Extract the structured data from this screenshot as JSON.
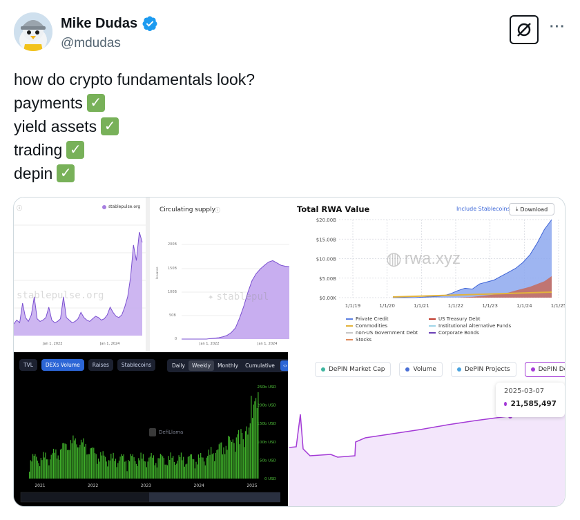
{
  "author": {
    "name": "Mike Dudas",
    "handle": "@mdudas",
    "avatar_icon": "penguin-avatar-icon",
    "verified_color": "#1d9bf0"
  },
  "header": {
    "grok_icon": "grok-icon",
    "more_label": "···"
  },
  "tweet": {
    "lines": [
      "how do crypto fundamentals look?",
      "payments",
      "yield assets",
      "trading",
      "depin"
    ],
    "check_glyph": "✓",
    "check_color": "#78b159"
  },
  "media": {
    "stablepulse": {
      "brand": "stablepulse.org",
      "watermark": "stablepulse.org",
      "x_ticks": [
        "Jan 1, 2022",
        "Jan 1, 2024"
      ],
      "series": [
        9,
        12,
        10,
        25,
        14,
        11,
        16,
        30,
        13,
        11,
        12,
        14,
        22,
        12,
        10,
        11,
        13,
        30,
        14,
        12,
        10,
        11,
        13,
        18,
        14,
        12,
        11,
        13,
        15,
        14,
        12,
        13,
        16,
        22,
        18,
        15,
        14,
        16,
        22,
        30,
        45,
        70,
        58,
        80,
        72
      ]
    },
    "circulating": {
      "title": "Circulating supply",
      "info_icon": "info-icon",
      "y_ticks": [
        "200B",
        "150B",
        "100B",
        "50B",
        "0"
      ],
      "y_label": "Issuance",
      "x_ticks": [
        "Jan 1, 2022",
        "Jan 1, 2024"
      ],
      "watermark": "stablepul",
      "series": [
        0,
        0,
        0,
        0,
        0,
        0,
        0,
        1,
        2,
        3,
        5,
        8,
        14,
        24,
        45,
        70,
        100,
        125,
        140,
        150,
        158,
        165,
        168,
        163,
        158,
        156,
        155
      ]
    },
    "rwa": {
      "title": "Total RWA Value",
      "include_label": "Include Stablecoins",
      "download_label": "Download",
      "download_icon": "download-icon",
      "watermark": "rwa.xyz",
      "y_ticks": [
        "$20.00B",
        "$15.00B",
        "$10.00B",
        "$5.00B",
        "$0.00K"
      ],
      "x_ticks": [
        "1/1/19",
        "1/1/20",
        "1/1/21",
        "1/1/22",
        "1/1/23",
        "1/1/24",
        "1/1/25"
      ],
      "legend": [
        {
          "label": "Private Credit",
          "color": "#5b7fe0"
        },
        {
          "label": "US Treasury Debt",
          "color": "#c0392b"
        },
        {
          "label": "Commodities",
          "color": "#e3b33b"
        },
        {
          "label": "Institutional Alternative Funds",
          "color": "#9fd4e8"
        },
        {
          "label": "non-US Government Debt",
          "color": "#c7c7c7"
        },
        {
          "label": "Corporate Bonds",
          "color": "#6a3fb5"
        },
        {
          "label": "Stocks",
          "color": "#e08a5b"
        }
      ],
      "private_credit": [
        0,
        0,
        0,
        0,
        0.1,
        0.2,
        0.3,
        0.5,
        1.0,
        1.8,
        2.4,
        2.2,
        3.5,
        4.0,
        4.5,
        5.5,
        6.5,
        7.5,
        9.0,
        11.0,
        14.0,
        17.5,
        20.0
      ],
      "treasury": [
        0,
        0,
        0,
        0,
        0,
        0,
        0,
        0,
        0,
        0,
        0.1,
        0.2,
        0.4,
        0.6,
        0.8,
        1.0,
        1.3,
        1.8,
        2.3,
        2.8,
        3.5,
        4.2,
        5.5
      ]
    },
    "defillama": {
      "tabs": [
        {
          "label": "TVL",
          "active": false
        },
        {
          "label": "DEXs Volume",
          "active": true
        },
        {
          "label": "Raises",
          "active": false
        },
        {
          "label": "Stablecoins",
          "active": false
        }
      ],
      "ranges": [
        {
          "label": "Daily",
          "active": false
        },
        {
          "label": "Weekly",
          "active": true
        },
        {
          "label": "Monthly",
          "active": false
        },
        {
          "label": "Cumulative",
          "active": false
        }
      ],
      "expand_label": "‹›",
      "brand": "DefiLlama",
      "y_ticks": [
        "250b USD",
        "200b USD",
        "150b USD",
        "100b USD",
        "50b USD",
        "0 USD"
      ],
      "x_ticks": [
        "2021",
        "2022",
        "2023",
        "2024",
        "2025"
      ],
      "bar_color": "#3fae2a"
    },
    "depin": {
      "pills": [
        {
          "label": "DePIN Market Cap",
          "color": "#3fb6a0",
          "active": false
        },
        {
          "label": "Volume",
          "color": "#4a6fd6",
          "active": false
        },
        {
          "label": "DePIN Projects",
          "color": "#4aa3df",
          "active": false
        },
        {
          "label": "DePIN Devices",
          "color": "#a33ad6",
          "active": true
        }
      ],
      "tooltip_date": "2025-03-07",
      "tooltip_value": "21,585,497",
      "line_color": "#a33ad6"
    }
  }
}
